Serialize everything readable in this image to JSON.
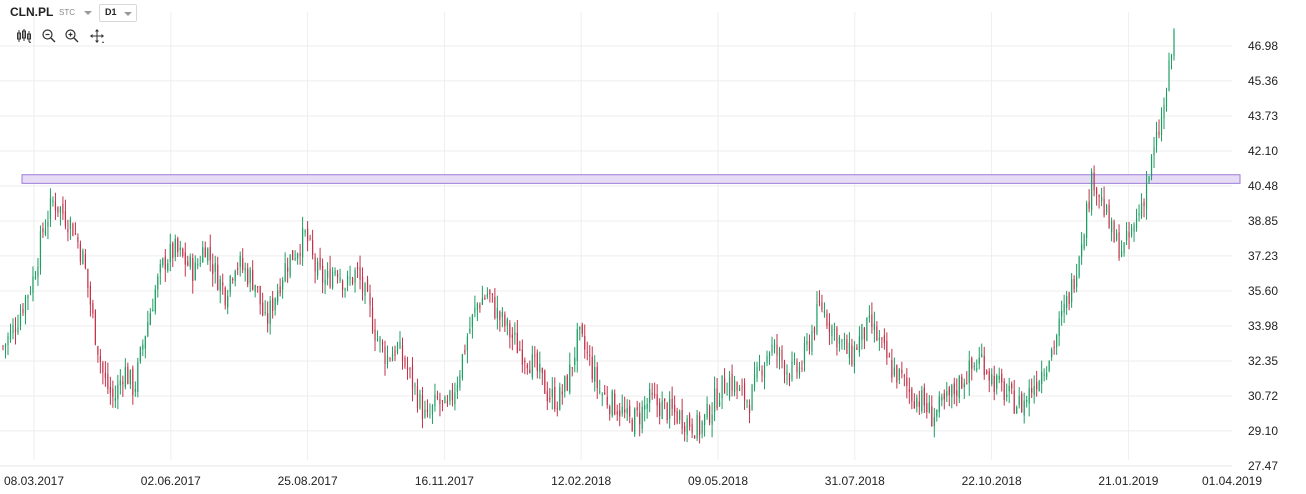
{
  "header": {
    "symbol": "CLN.PL",
    "type": "STC",
    "timeframe": "D1"
  },
  "toolbar": {
    "icons": [
      "candles-icon",
      "zoom-out-icon",
      "zoom-in-icon",
      "pan-icon"
    ]
  },
  "colors": {
    "up": "#1e9e63",
    "down": "#c2334a",
    "zone_fill": "#e6dcf5",
    "zone_border": "#9c7bd9",
    "grid": "#eeeeee"
  },
  "chart_data": {
    "type": "candlestick",
    "y_ticks": [
      "46.98",
      "45.36",
      "43.73",
      "42.10",
      "40.48",
      "38.85",
      "37.23",
      "35.60",
      "33.98",
      "32.35",
      "30.72",
      "29.10",
      "27.47"
    ],
    "x_ticks": [
      "08.03.2017",
      "02.06.2017",
      "25.08.2017",
      "16.11.2017",
      "12.02.2018",
      "09.05.2018",
      "31.07.2018",
      "22.10.2018",
      "21.01.2019",
      "01.04.2019"
    ],
    "ylim": [
      27.47,
      47.8
    ],
    "resistance_zone": [
      40.6,
      41.0
    ],
    "grid": true,
    "close_series": [
      33.0,
      33.8,
      35.0,
      36.2,
      38.5,
      39.8,
      39.2,
      38.5,
      37.0,
      34.0,
      31.5,
      30.5,
      32.0,
      31.0,
      33.5,
      35.5,
      37.0,
      37.5,
      37.0,
      36.5,
      37.8,
      36.5,
      35.5,
      37.0,
      36.5,
      36.0,
      34.0,
      35.5,
      36.8,
      37.5,
      38.2,
      36.5,
      36.0,
      36.8,
      35.8,
      36.5,
      35.2,
      33.5,
      32.5,
      33.0,
      32.0,
      30.8,
      29.5,
      30.5,
      30.0,
      31.5,
      33.5,
      35.0,
      35.5,
      34.5,
      33.8,
      33.0,
      32.5,
      31.8,
      30.8,
      30.5,
      31.5,
      33.5,
      32.5,
      31.0,
      30.5,
      30.2,
      29.5,
      29.8,
      30.5,
      30.3,
      30.0,
      29.8,
      29.5,
      29.2,
      30.0,
      31.0,
      31.5,
      30.8,
      30.5,
      32.0,
      33.0,
      32.5,
      31.8,
      32.0,
      33.5,
      35.0,
      34.0,
      33.2,
      32.5,
      33.5,
      34.0,
      33.0,
      32.0,
      31.5,
      30.8,
      30.5,
      29.8,
      30.2,
      30.8,
      31.5,
      32.0,
      32.5,
      31.5,
      31.0,
      30.5,
      30.3,
      31.2,
      32.0,
      33.0,
      34.5,
      36.0,
      38.5,
      41.0,
      39.5,
      38.0,
      37.5,
      38.5,
      40.0,
      42.0,
      44.0,
      47.5
    ]
  }
}
